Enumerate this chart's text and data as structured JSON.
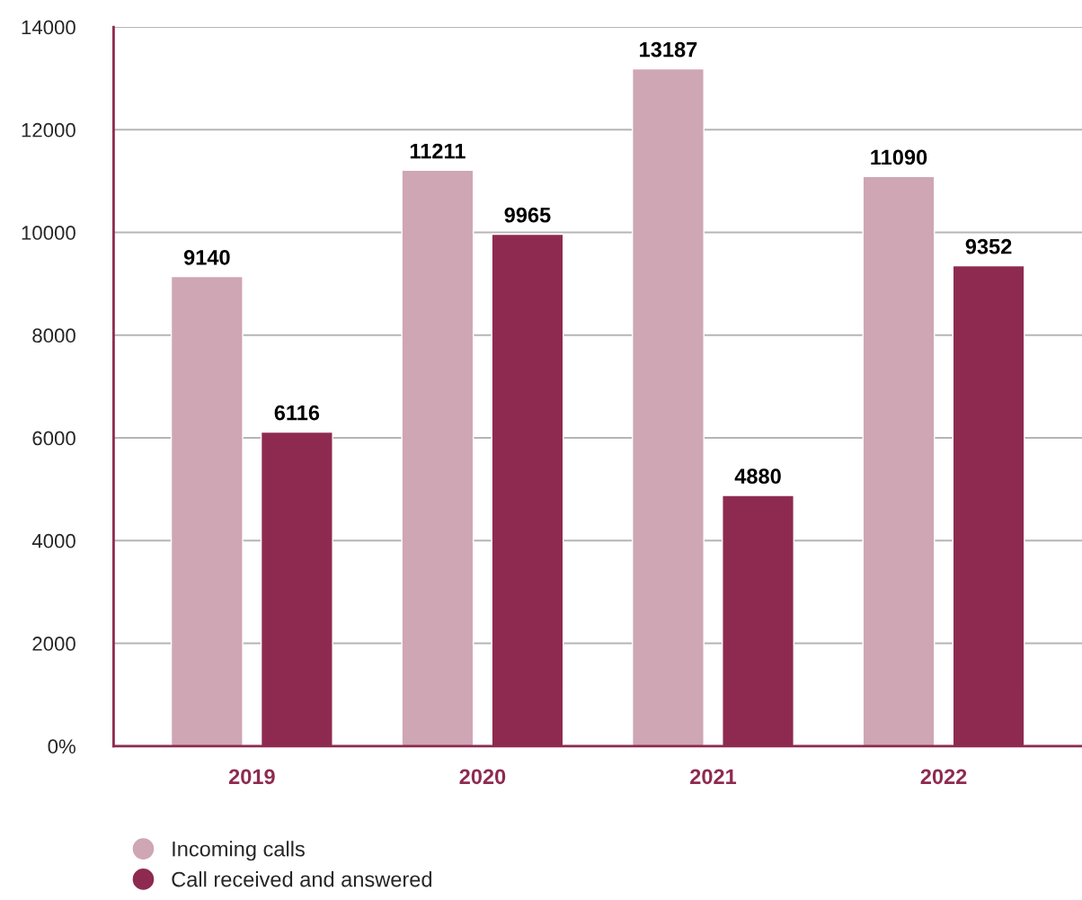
{
  "chart_data": {
    "type": "bar",
    "categories": [
      "2019",
      "2020",
      "2021",
      "2022"
    ],
    "series": [
      {
        "name": "Incoming calls",
        "color": "#cfa6b3",
        "values": [
          9140,
          11211,
          13187,
          11090
        ]
      },
      {
        "name": "Call received and answered",
        "color": "#8e2a50",
        "values": [
          6116,
          9965,
          4880,
          9352
        ]
      }
    ],
    "ylim": [
      0,
      14000
    ],
    "yticks": [
      {
        "value": 0,
        "label": "0%"
      },
      2000,
      4000,
      6000,
      8000,
      10000,
      12000,
      14000
    ],
    "grid": "y",
    "legend": "bottom",
    "data_labels": true
  }
}
